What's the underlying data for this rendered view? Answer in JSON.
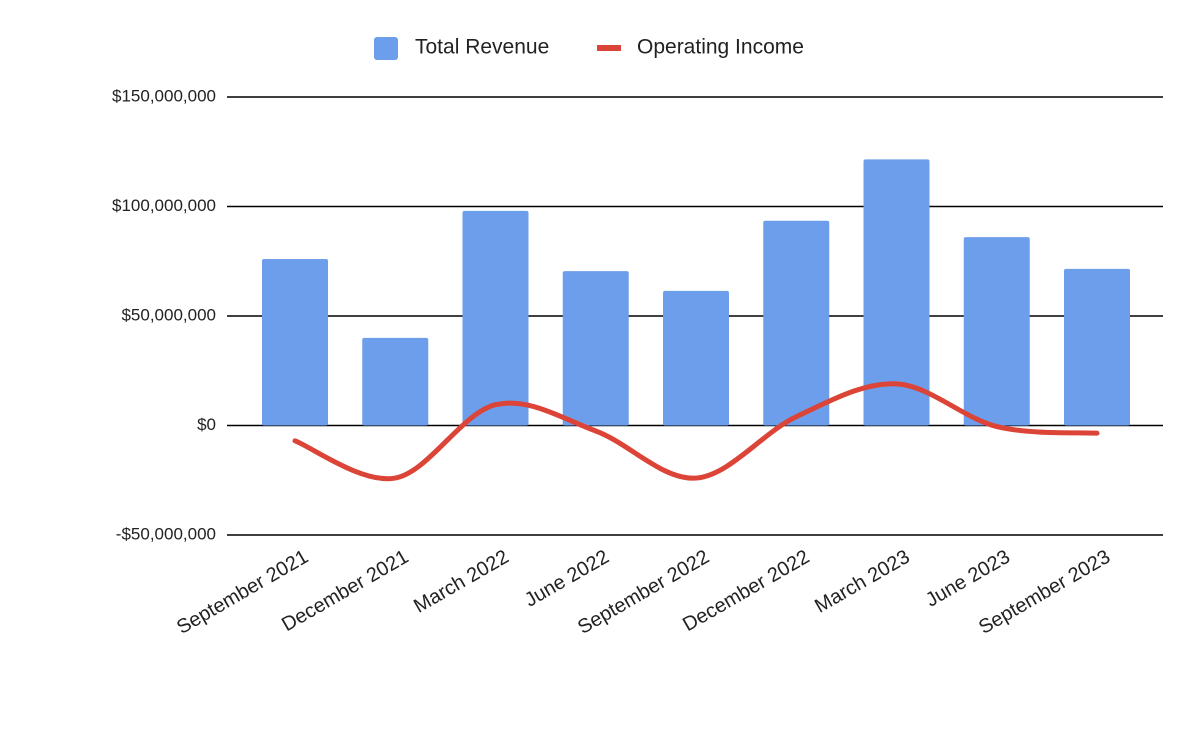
{
  "chart_data": {
    "type": "bar",
    "categories": [
      "September 2021",
      "December 2021",
      "March 2022",
      "June 2022",
      "September 2022",
      "December 2022",
      "March 2023",
      "June 2023",
      "September 2023"
    ],
    "series": [
      {
        "name": "Total Revenue",
        "type": "bar",
        "color": "#6d9eeb",
        "values": [
          76000000,
          40000000,
          98000000,
          70500000,
          61500000,
          93500000,
          121500000,
          86000000,
          71500000
        ]
      },
      {
        "name": "Operating Income",
        "type": "line",
        "color": "#db4437",
        "values": [
          -7000000,
          -24000000,
          9500000,
          -2500000,
          -24000000,
          4000000,
          19000000,
          -500000,
          -3500000
        ]
      }
    ],
    "ylim": [
      -50000000,
      150000000
    ],
    "yticks": [
      {
        "value": -50000000,
        "label": "-$50,000,000"
      },
      {
        "value": 0,
        "label": "$0"
      },
      {
        "value": 50000000,
        "label": "$50,000,000"
      },
      {
        "value": 100000000,
        "label": "$100,000,000"
      },
      {
        "value": 150000000,
        "label": "$150,000,000"
      }
    ],
    "grid": true,
    "legend": "top"
  }
}
